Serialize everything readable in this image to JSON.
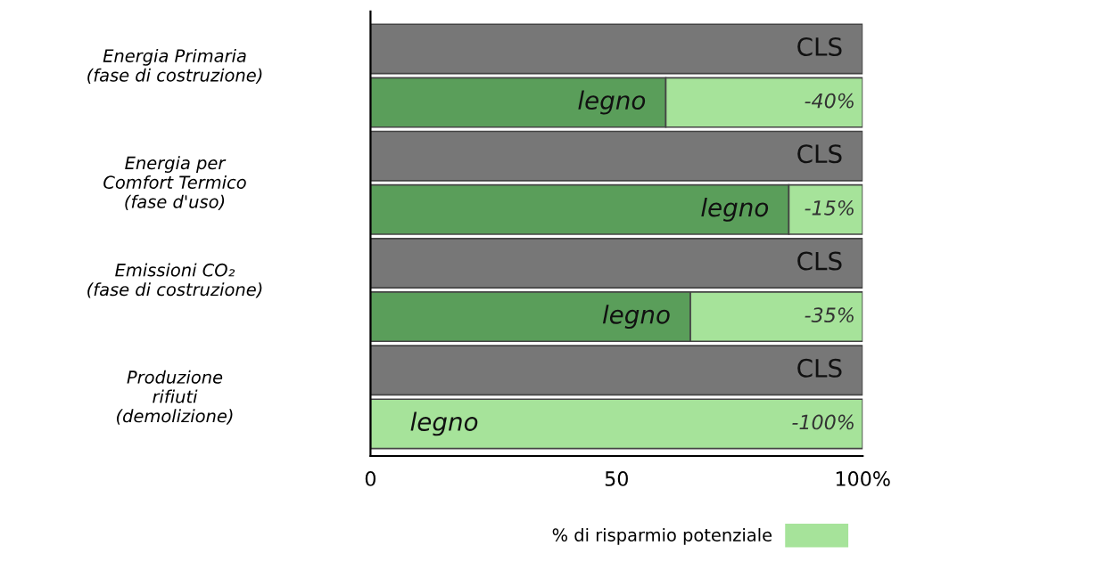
{
  "chart_data": {
    "type": "bar",
    "orientation": "horizontal",
    "categories": [
      "Energia Primaria\n(fase di costruzione)",
      null,
      "Energia per\nComfort Termico\n(fase d'uso)",
      null,
      "Emissioni CO₂\n(fase di costruzione)",
      null,
      "Produzione\nrifiuti\n(demolizione)",
      null
    ],
    "series": [
      {
        "name": "CLS",
        "color": "#777777",
        "values": [
          100,
          null,
          100,
          null,
          100,
          null,
          100,
          null
        ]
      },
      {
        "name": "legno",
        "color": "#5a9e5a",
        "values": [
          null,
          60,
          null,
          85,
          null,
          65,
          null,
          0
        ]
      },
      {
        "name": "% di risparmio potenziale",
        "color": "#a6e39a",
        "values": [
          null,
          -40,
          null,
          -15,
          null,
          -35,
          null,
          -100
        ],
        "base": [
          null,
          100,
          null,
          100,
          null,
          100,
          null,
          100
        ],
        "value_labels": [
          null,
          "-40%",
          null,
          "-15%",
          null,
          "-35%",
          null,
          "-100%"
        ]
      }
    ],
    "xlim": [
      0,
      100
    ],
    "xticks": [
      0,
      50,
      {
        "value": 100,
        "label": "100%"
      }
    ],
    "grid": false,
    "legend": "bottom right"
  }
}
